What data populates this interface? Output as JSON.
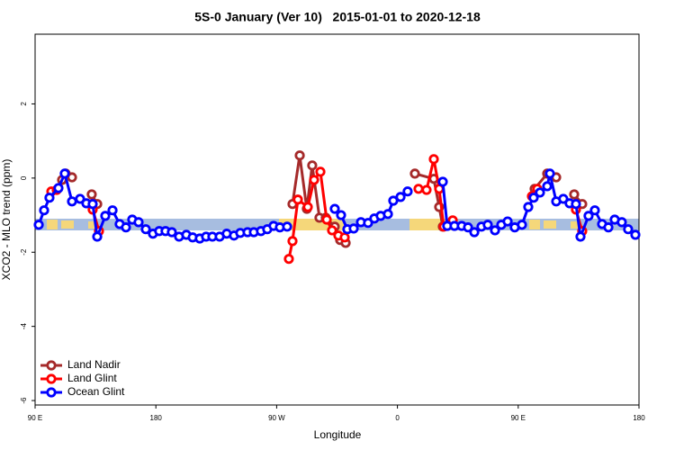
{
  "chart_data": {
    "type": "line",
    "title": "5S-0 January (Ver 10)   2015-01-01 to 2020-12-18",
    "xlabel": "Longitude",
    "ylabel": "XCO2 - MLO trend (ppm)",
    "xlim": [
      90,
      540
    ],
    "ylim": [
      -6.12,
      3.88
    ],
    "xticks": [
      {
        "value": 90,
        "label": "90 E"
      },
      {
        "value": 180,
        "label": "180"
      },
      {
        "value": 270,
        "label": "90 W"
      },
      {
        "value": 360,
        "label": "0"
      },
      {
        "value": 450,
        "label": "90 E"
      },
      {
        "value": 540,
        "label": "180"
      }
    ],
    "yticks": [
      2,
      0,
      -2,
      -4,
      -6
    ],
    "grid": false,
    "legend": "bottomleft",
    "series": [
      {
        "name": "Land Nadir",
        "color": "#a52a2a",
        "x": [
          110.1,
          112.8,
          117.5,
          null,
          132.2,
          136.3,
          null,
          281.8,
          287.2,
          292.5,
          296.5,
          301.9,
          306.6,
          313.3,
          317.3,
          321.4,
          null,
          373.0,
          387.1,
          391.1,
          393.8,
          null,
          462.2,
          471.6,
          478.3,
          null,
          491.7,
          497.7
        ],
        "values": [
          -0.05,
          0.12,
          0.02,
          null,
          -0.44,
          -0.7,
          null,
          -0.7,
          0.61,
          -0.83,
          0.34,
          -1.07,
          -1.07,
          -1.31,
          -1.67,
          -1.75,
          null,
          0.12,
          -0.02,
          -0.78,
          -1.31,
          null,
          -0.29,
          0.12,
          0.02,
          null,
          -0.44,
          -0.7
        ]
      },
      {
        "name": "Land Glint",
        "color": "#ff0000",
        "x": [
          102.1,
          106.1,
          null,
          132.9,
          137.6,
          null,
          279.1,
          281.8,
          285.8,
          293.2,
          297.9,
          302.6,
          307.3,
          311.3,
          316.0,
          320.7,
          null,
          375.7,
          381.7,
          387.1,
          391.1,
          394.5,
          401.2,
          null,
          460.2,
          464.2,
          null,
          493.0,
          497.7
        ],
        "values": [
          -0.36,
          -0.32,
          null,
          -0.85,
          -1.43,
          null,
          -2.18,
          -1.7,
          -0.58,
          -0.78,
          -0.05,
          0.17,
          -1.12,
          -1.41,
          -1.55,
          -1.6,
          null,
          -0.29,
          -0.32,
          0.51,
          -0.29,
          -1.31,
          -1.14,
          null,
          -0.49,
          -0.29,
          null,
          -0.85,
          -1.43
        ]
      },
      {
        "name": "Ocean Glint",
        "color": "#0000ff",
        "x": [
          92.7,
          96.7,
          100.7,
          107.4,
          112.1,
          117.5,
          123.5,
          128.2,
          132.9,
          136.3,
          142.3,
          147.7,
          153.0,
          157.7,
          162.4,
          167.1,
          172.5,
          177.8,
          182.5,
          187.2,
          191.9,
          197.3,
          202.7,
          207.4,
          212.7,
          217.4,
          222.1,
          227.5,
          232.8,
          238.2,
          242.9,
          248.3,
          253.0,
          258.3,
          263.0,
          267.7,
          272.4,
          277.8,
          null,
          313.3,
          318.0,
          322.7,
          327.4,
          332.8,
          338.1,
          342.8,
          347.5,
          352.9,
          356.9,
          362.3,
          367.6,
          null,
          393.8,
          397.1,
          402.5,
          407.9,
          412.6,
          417.3,
          422.6,
          427.3,
          432.7,
          437.4,
          442.1,
          447.4,
          452.8,
          457.5,
          461.5,
          466.2,
          471.6,
          473.6,
          478.3,
          483.6,
          488.3,
          493.0,
          496.4,
          502.4,
          507.1,
          512.5,
          517.2,
          521.9,
          527.2,
          531.9,
          537.3
        ],
        "values": [
          -1.26,
          -0.87,
          -0.53,
          -0.27,
          0.12,
          -0.63,
          -0.56,
          -0.68,
          -0.7,
          -1.58,
          -1.02,
          -0.87,
          -1.24,
          -1.33,
          -1.12,
          -1.19,
          -1.38,
          -1.5,
          -1.43,
          -1.43,
          -1.46,
          -1.58,
          -1.53,
          -1.6,
          -1.63,
          -1.58,
          -1.58,
          -1.58,
          -1.5,
          -1.55,
          -1.48,
          -1.46,
          -1.46,
          -1.43,
          -1.38,
          -1.29,
          -1.33,
          -1.31,
          null,
          -0.83,
          -1.0,
          -1.38,
          -1.36,
          -1.19,
          -1.21,
          -1.09,
          -1.02,
          -0.97,
          -0.61,
          -0.51,
          -0.36,
          null,
          -0.1,
          -1.29,
          -1.29,
          -1.29,
          -1.33,
          -1.46,
          -1.31,
          -1.26,
          -1.41,
          -1.26,
          -1.17,
          -1.33,
          -1.26,
          -0.78,
          -0.53,
          -0.39,
          -0.22,
          0.12,
          -0.63,
          -0.56,
          -0.68,
          -0.7,
          -1.58,
          -1.02,
          -0.87,
          -1.24,
          -1.33,
          -1.12,
          -1.19,
          -1.38,
          -1.53
        ]
      }
    ]
  }
}
